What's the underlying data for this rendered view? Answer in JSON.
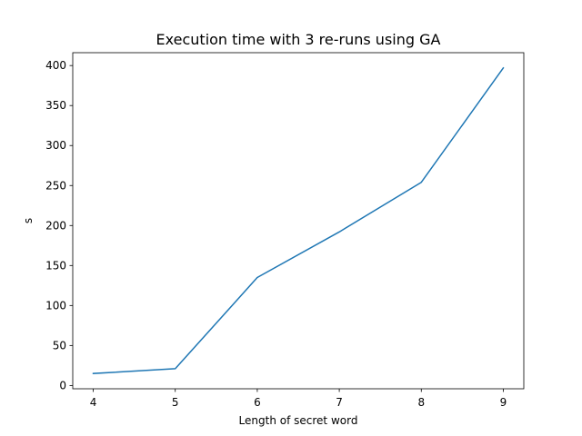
{
  "chart_data": {
    "type": "line",
    "title": "Execution time with 3 re-runs using GA",
    "xlabel": "Length of secret word",
    "ylabel": "s",
    "x": [
      4,
      5,
      6,
      7,
      8,
      9
    ],
    "series": [
      {
        "values": [
          15,
          21,
          135,
          192,
          254,
          397
        ],
        "color": "#1f77b4"
      }
    ],
    "xlim": [
      3.75,
      9.25
    ],
    "ylim": [
      -4.1,
      416.1
    ],
    "xticks": [
      4,
      5,
      6,
      7,
      8,
      9
    ],
    "yticks": [
      0,
      50,
      100,
      150,
      200,
      250,
      300,
      350,
      400
    ],
    "grid": false,
    "legend": "none"
  }
}
